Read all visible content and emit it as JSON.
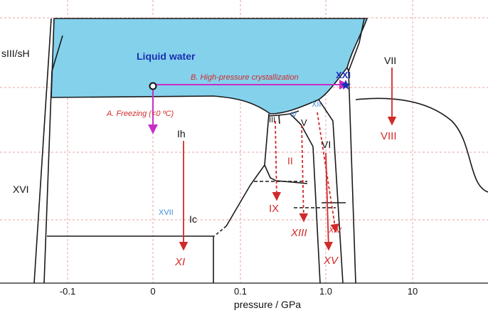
{
  "diagram": {
    "xlabel": "pressure / GPa",
    "x_ticks": [
      "-0.1",
      "0",
      "0.1",
      "1.0",
      "10"
    ],
    "regions": {
      "liquid": "Liquid water",
      "sIII_sH": "sIII/sH",
      "XVI": "XVI",
      "Ih": "Ih",
      "Ic": "Ic",
      "XVII": "XVII",
      "III": "III",
      "IV": "IV",
      "V": "V",
      "II": "II",
      "VI": "VI",
      "XII": "XII",
      "XXI": "XXI",
      "VII": "VII"
    },
    "derived": {
      "XI": "XI",
      "IX": "IX",
      "XIII": "XIII",
      "XIV": "XIV",
      "XV": "XV",
      "VIII": "VIII"
    },
    "annotations": {
      "freezing": "A. Freezing (<0 ºC)",
      "crystallization": "B. High-pressure crystallization"
    },
    "colors": {
      "liquid_fill": "#84D1EC",
      "arrow_red": "#D12A2A",
      "arrow_magenta": "#C72EC7",
      "grid": "#E8A0A0",
      "label_blue": "#1A2FB0",
      "label_light_blue": "#3C8DD8",
      "boundary": "#1a1a1a"
    }
  }
}
